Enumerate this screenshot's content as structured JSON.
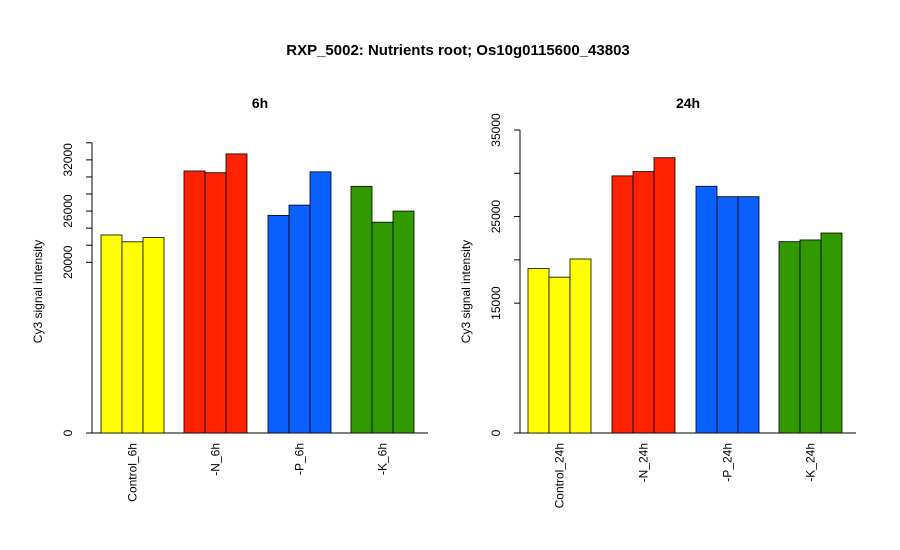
{
  "title": "RXP_5002: Nutrients root; Os10g0115600_43803",
  "chart_data": [
    {
      "type": "bar",
      "title": "6h",
      "ylabel": "Cy3 signal intensity",
      "xlabel": "",
      "ylim": [
        0,
        35500
      ],
      "yticks": [
        0,
        20000,
        26000,
        32000
      ],
      "ytick_labels": [
        "0",
        "20000",
        "26000",
        "32000"
      ],
      "ytick_marks": [
        0,
        20000,
        22000,
        24000,
        26000,
        28000,
        30000,
        32000,
        34000
      ],
      "categories": [
        "Control_6h",
        "-N_6h",
        "-P_6h",
        "-K_6h"
      ],
      "colors": [
        "#ffff00",
        "#ff2200",
        "#0a5fff",
        "#339900"
      ],
      "groups": [
        [
          23200,
          22400,
          22900
        ],
        [
          30700,
          30500,
          32700
        ],
        [
          25500,
          26700,
          30600
        ],
        [
          28900,
          24700,
          26000
        ]
      ]
    },
    {
      "type": "bar",
      "title": "24h",
      "ylabel": "Cy3 signal intensity",
      "xlabel": "",
      "ylim": [
        0,
        35000
      ],
      "yticks": [
        0,
        15000,
        25000,
        35000
      ],
      "ytick_labels": [
        "0",
        "15000",
        "25000",
        "35000"
      ],
      "ytick_marks": [
        0,
        15000,
        20000,
        25000,
        30000,
        35000
      ],
      "categories": [
        "Control_24h",
        "-N_24h",
        "-P_24h",
        "-K_24h"
      ],
      "colors": [
        "#ffff00",
        "#ff2200",
        "#0a5fff",
        "#339900"
      ],
      "groups": [
        [
          19000,
          18000,
          20100
        ],
        [
          29700,
          30200,
          31800
        ],
        [
          28500,
          27300,
          27300
        ],
        [
          22100,
          22300,
          23100
        ]
      ]
    }
  ]
}
